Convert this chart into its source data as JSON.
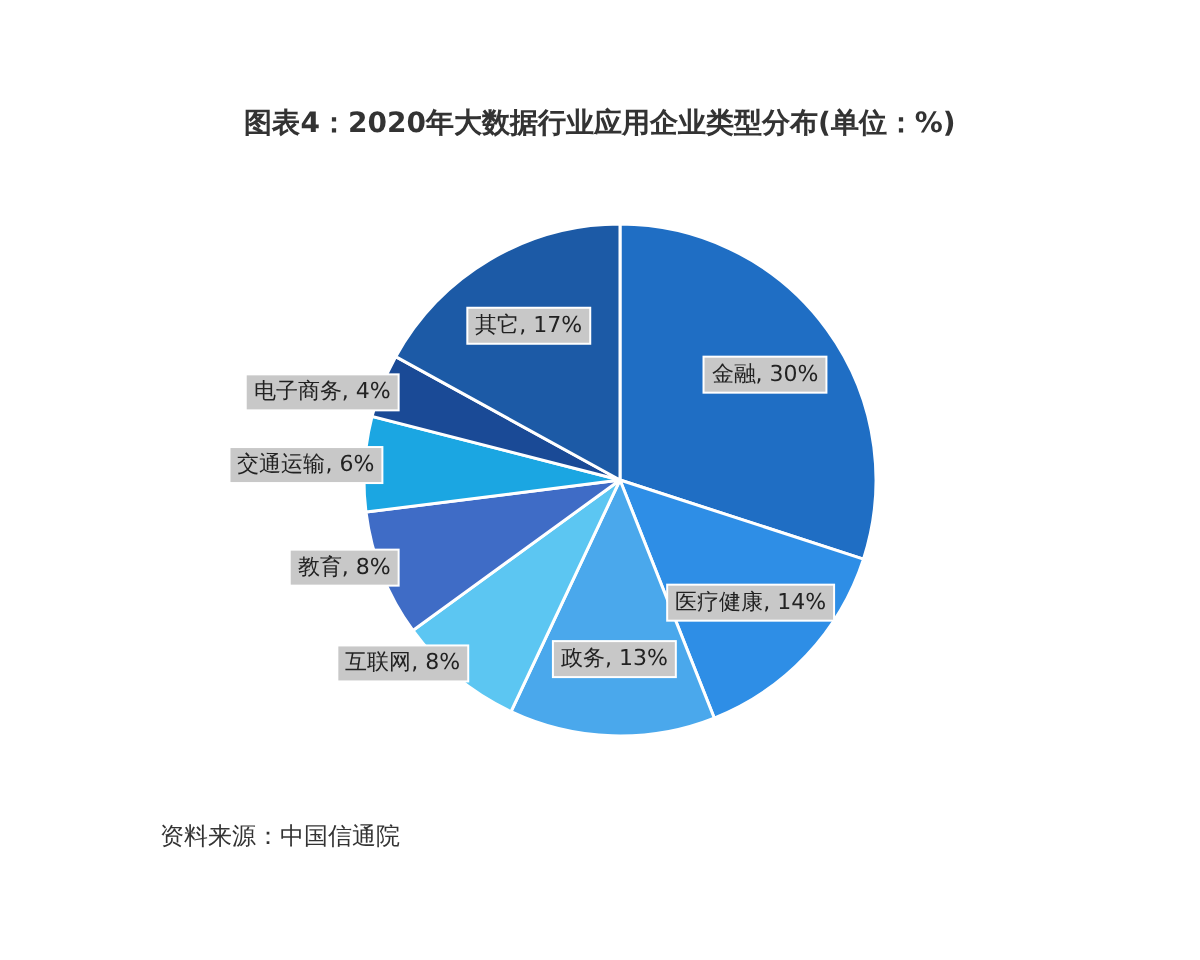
{
  "chart_data": {
    "type": "pie",
    "title": "图表4：2020年大数据行业应用企业类型分布(单位：%)",
    "categories": [
      "金融",
      "医疗健康",
      "政务",
      "互联网",
      "教育",
      "交通运输",
      "电子商务",
      "其它"
    ],
    "values": [
      30,
      14,
      13,
      8,
      8,
      6,
      4,
      17
    ],
    "value_labels": [
      "30%",
      "14%",
      "13%",
      "8%",
      "8%",
      "6%",
      "4%",
      "17%"
    ],
    "colors": [
      "#1f6ec4",
      "#2e8ee6",
      "#4aa8ec",
      "#5cc6f2",
      "#3f6cc6",
      "#1ba6e2",
      "#1a4a96",
      "#1c5aa6"
    ],
    "annotations": [
      "资料来源：中国信通院"
    ]
  }
}
